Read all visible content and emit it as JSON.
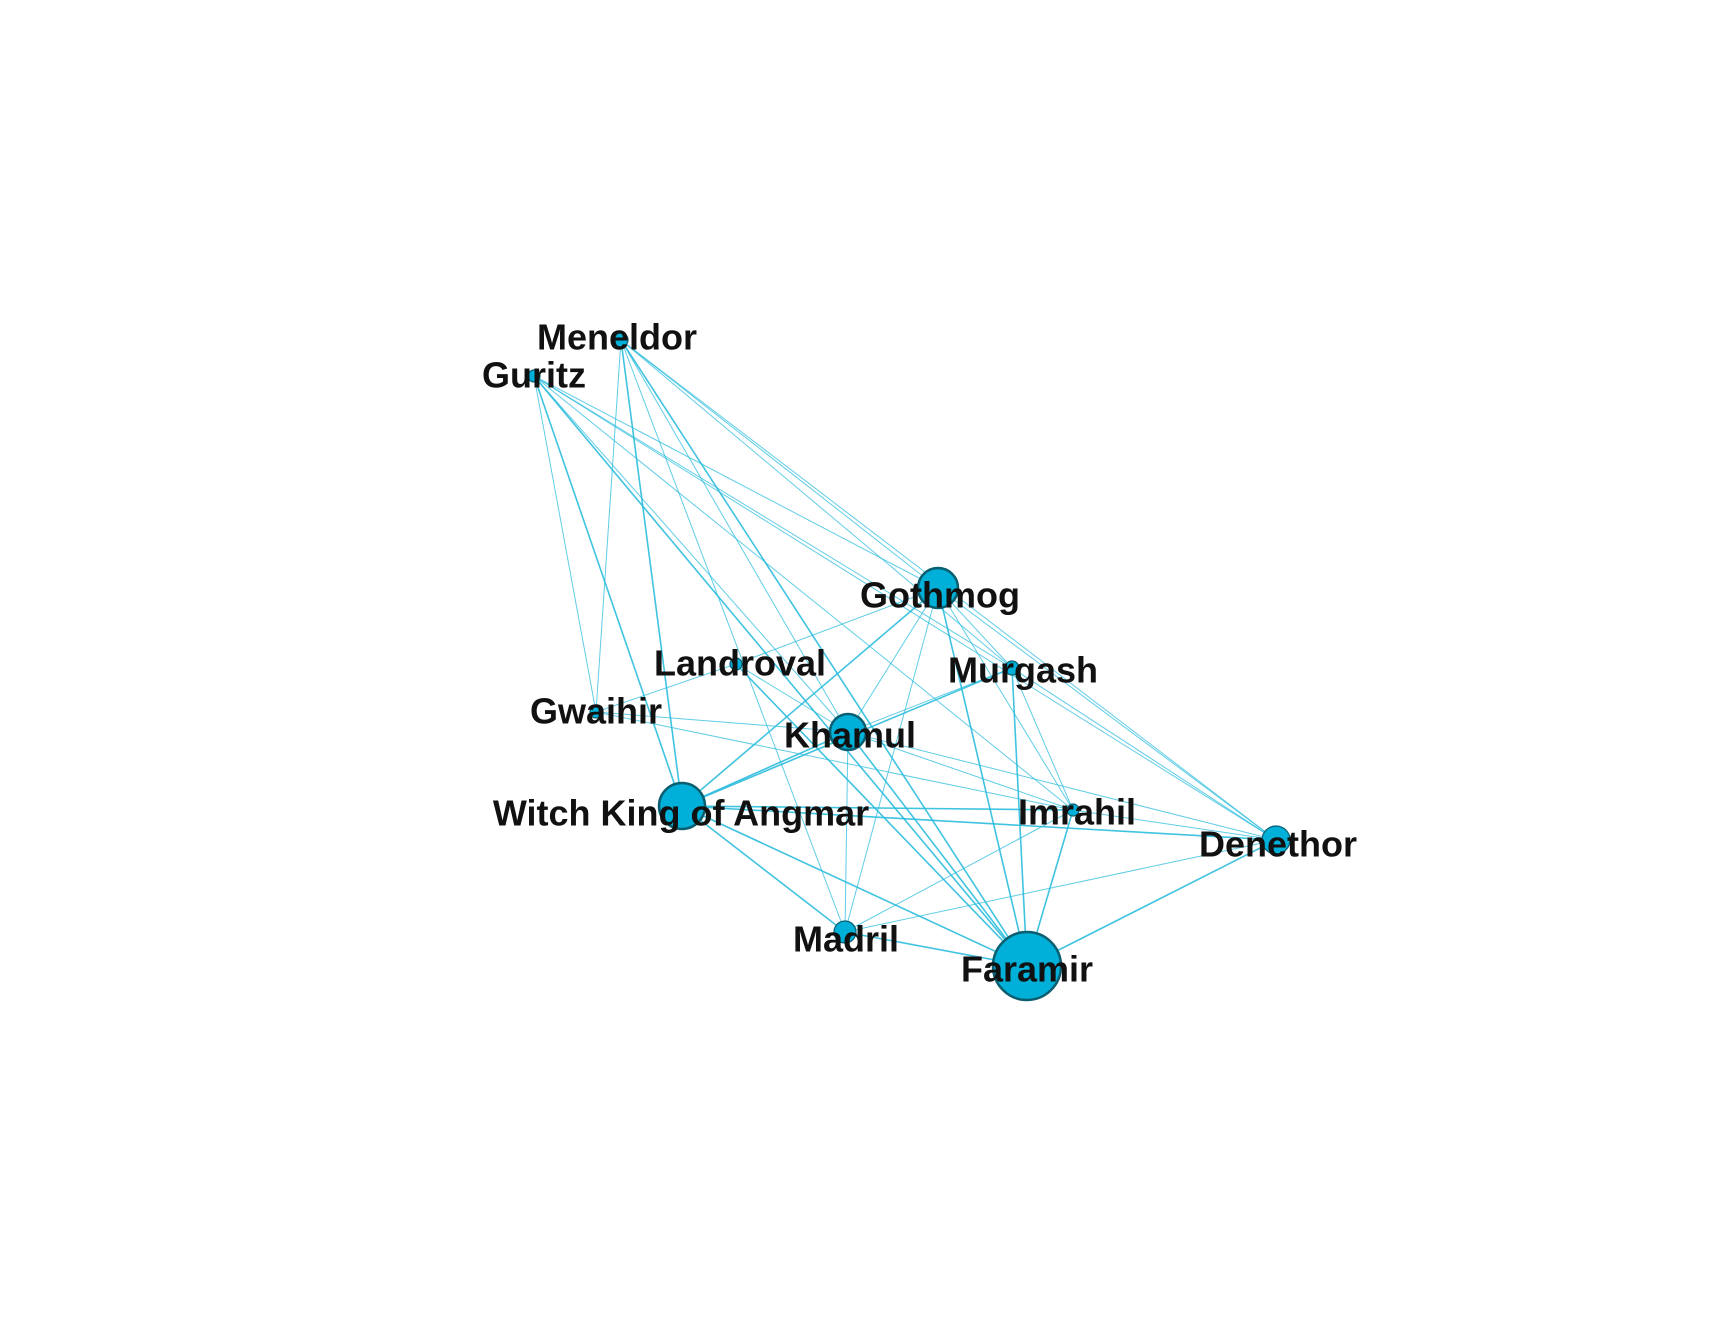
{
  "graph": {
    "colors": {
      "node_fill": "#00B0D8",
      "node_stroke": "#0A5E70",
      "edge": "#2BBCDD",
      "label": "#111111"
    },
    "nodes": [
      {
        "id": "meneldor",
        "label": "Meneldor",
        "weight": 1
      },
      {
        "id": "guritz",
        "label": "Guritz",
        "weight": 1
      },
      {
        "id": "gothmog",
        "label": "Gothmog",
        "weight": 4
      },
      {
        "id": "landroval",
        "label": "Landroval",
        "weight": 1
      },
      {
        "id": "murgash",
        "label": "Murgash",
        "weight": 1
      },
      {
        "id": "gwaihir",
        "label": "Gwaihir",
        "weight": 1
      },
      {
        "id": "khamul",
        "label": "Khamul",
        "weight": 3
      },
      {
        "id": "witchking",
        "label": "Witch King of Angmar",
        "weight": 5
      },
      {
        "id": "imrahil",
        "label": "Imrahil",
        "weight": 1
      },
      {
        "id": "denethor",
        "label": "Denethor",
        "weight": 2
      },
      {
        "id": "madril",
        "label": "Madril",
        "weight": 2
      },
      {
        "id": "faramir",
        "label": "Faramir",
        "weight": 9
      }
    ],
    "edges": [
      [
        "meneldor",
        "gothmog"
      ],
      [
        "meneldor",
        "khamul"
      ],
      [
        "meneldor",
        "witchking"
      ],
      [
        "meneldor",
        "gwaihir"
      ],
      [
        "meneldor",
        "murgash"
      ],
      [
        "meneldor",
        "faramir"
      ],
      [
        "meneldor",
        "madril"
      ],
      [
        "meneldor",
        "denethor"
      ],
      [
        "guritz",
        "gothmog"
      ],
      [
        "guritz",
        "khamul"
      ],
      [
        "guritz",
        "witchking"
      ],
      [
        "guritz",
        "gwaihir"
      ],
      [
        "guritz",
        "imrahil"
      ],
      [
        "guritz",
        "denethor"
      ],
      [
        "guritz",
        "faramir"
      ],
      [
        "guritz",
        "murgash"
      ],
      [
        "gothmog",
        "landroval"
      ],
      [
        "gothmog",
        "khamul"
      ],
      [
        "gothmog",
        "witchking"
      ],
      [
        "gothmog",
        "faramir"
      ],
      [
        "gothmog",
        "madril"
      ],
      [
        "gothmog",
        "imrahil"
      ],
      [
        "gothmog",
        "denethor"
      ],
      [
        "gothmog",
        "murgash"
      ],
      [
        "landroval",
        "gwaihir"
      ],
      [
        "landroval",
        "faramir"
      ],
      [
        "landroval",
        "khamul"
      ],
      [
        "gwaihir",
        "khamul"
      ],
      [
        "gwaihir",
        "imrahil"
      ],
      [
        "khamul",
        "witchking"
      ],
      [
        "khamul",
        "faramir"
      ],
      [
        "khamul",
        "madril"
      ],
      [
        "khamul",
        "imrahil"
      ],
      [
        "khamul",
        "denethor"
      ],
      [
        "khamul",
        "murgash"
      ],
      [
        "witchking",
        "faramir"
      ],
      [
        "witchking",
        "madril"
      ],
      [
        "witchking",
        "imrahil"
      ],
      [
        "witchking",
        "denethor"
      ],
      [
        "witchking",
        "murgash"
      ],
      [
        "imrahil",
        "faramir"
      ],
      [
        "imrahil",
        "denethor"
      ],
      [
        "imrahil",
        "madril"
      ],
      [
        "murgash",
        "faramir"
      ],
      [
        "murgash",
        "denethor"
      ],
      [
        "murgash",
        "imrahil"
      ],
      [
        "denethor",
        "faramir"
      ],
      [
        "denethor",
        "madril"
      ],
      [
        "madril",
        "faramir"
      ]
    ]
  }
}
